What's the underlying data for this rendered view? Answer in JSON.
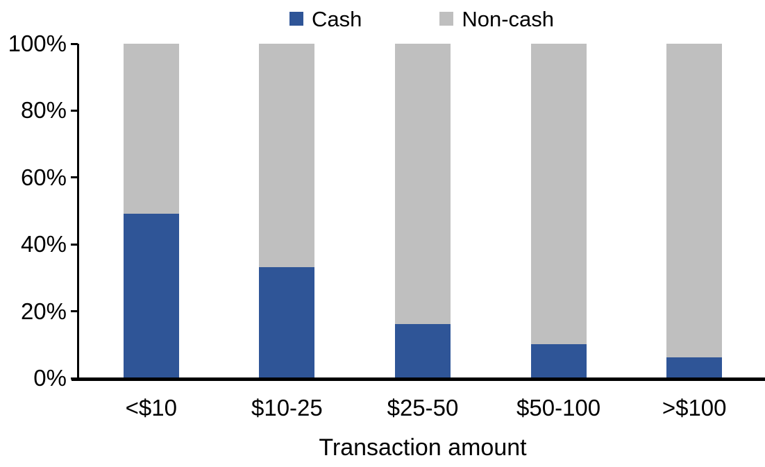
{
  "chart_data": {
    "type": "bar",
    "subtype": "stacked-100-percent",
    "title": "",
    "xlabel": "Transaction amount",
    "ylabel": "",
    "categories": [
      "<$10",
      "$10-25",
      "$25-50",
      "$50-100",
      ">$100"
    ],
    "series": [
      {
        "name": "Cash",
        "color": "#2F5597",
        "values": [
          49,
          33,
          16,
          10,
          6
        ]
      },
      {
        "name": "Non-cash",
        "color": "#BFBFBF",
        "values": [
          51,
          67,
          84,
          90,
          94
        ]
      }
    ],
    "ylim": [
      0,
      100
    ],
    "yticks": [
      {
        "value": 0,
        "label": "0%"
      },
      {
        "value": 20,
        "label": "20%"
      },
      {
        "value": 40,
        "label": "40%"
      },
      {
        "value": 60,
        "label": "60%"
      },
      {
        "value": 80,
        "label": "80%"
      },
      {
        "value": 100,
        "label": "100%"
      }
    ],
    "grid": false,
    "legend_position": "top-center",
    "axis_color": "#000000",
    "text_color": "#000000"
  }
}
